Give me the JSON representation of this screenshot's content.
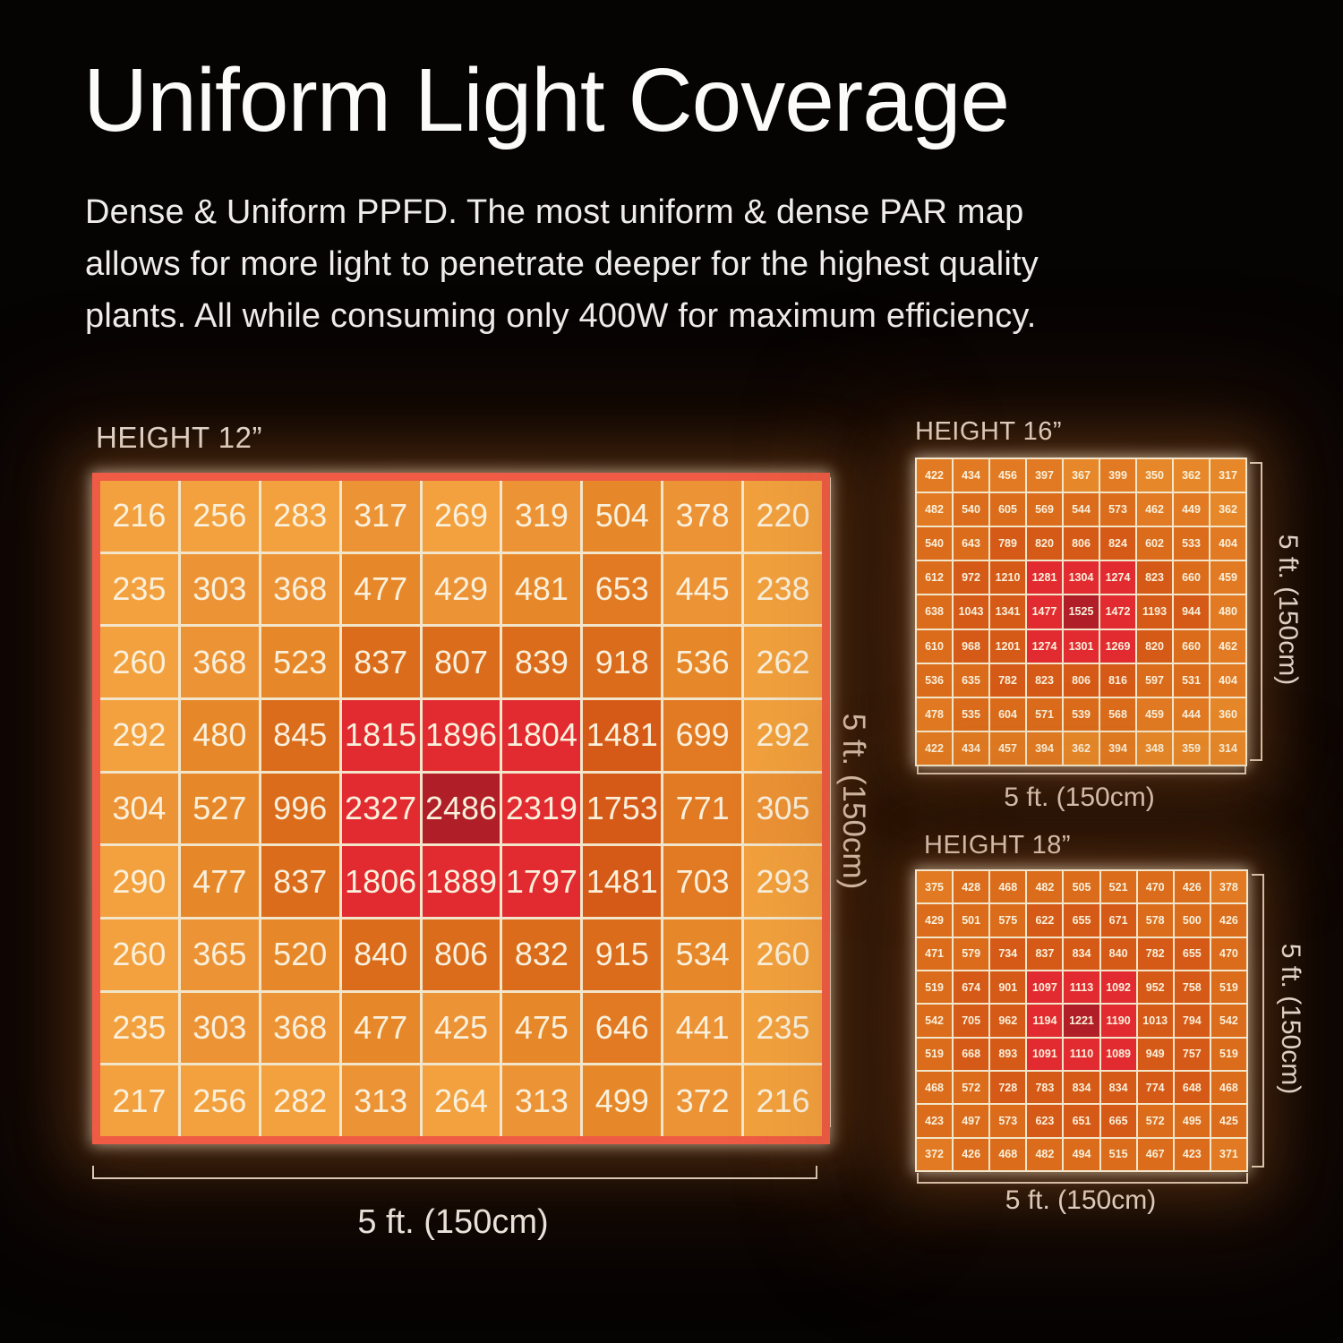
{
  "page": {
    "title": "Uniform Light Coverage",
    "description_lines": [
      "Dense & Uniform PPFD. The most uniform & dense PAR map",
      "allows for more light to penetrate deeper for the highest quality",
      "plants.  All while consuming only 400W for maximum efficiency."
    ]
  },
  "palette": {
    "background": "#060303",
    "grid_border_coral": "#EF5B44",
    "grid_line_cream": "#F2E5C9",
    "cell_text": "#FAF0DB",
    "label_white": "#F4F2EE",
    "tier_colors": {
      "light": "#F2A13E",
      "orange": "#EC9336",
      "medium": "#E68829",
      "medium_dark": "#E17A22",
      "dark": "#DA6C1B",
      "rust": "#D65A17",
      "red": "#E22B31",
      "dark_red": "#B01F27"
    }
  },
  "chart_data": [
    {
      "type": "heatmap",
      "title": "HEIGHT 12”",
      "xlabel": "5 ft. (150cm)",
      "ylabel": "5 ft. (150cm)",
      "rows": 9,
      "cols": 9,
      "values": [
        [
          216,
          256,
          283,
          317,
          269,
          319,
          504,
          378,
          220
        ],
        [
          235,
          303,
          368,
          477,
          429,
          481,
          653,
          445,
          238
        ],
        [
          260,
          368,
          523,
          837,
          807,
          839,
          918,
          536,
          262
        ],
        [
          292,
          480,
          845,
          1815,
          1896,
          1804,
          1481,
          699,
          292
        ],
        [
          304,
          527,
          996,
          2327,
          2486,
          2319,
          1753,
          771,
          305
        ],
        [
          290,
          477,
          837,
          1806,
          1889,
          1797,
          1481,
          703,
          293
        ],
        [
          260,
          365,
          520,
          840,
          806,
          832,
          915,
          534,
          260
        ],
        [
          235,
          303,
          368,
          477,
          425,
          475,
          646,
          441,
          235
        ],
        [
          217,
          256,
          282,
          313,
          264,
          313,
          499,
          372,
          216
        ]
      ]
    },
    {
      "type": "heatmap",
      "title": "HEIGHT 16”",
      "xlabel": "5 ft. (150cm)",
      "ylabel": "5 ft. (150cm)",
      "rows": 9,
      "cols": 9,
      "values": [
        [
          422,
          434,
          456,
          397,
          367,
          399,
          350,
          362,
          317
        ],
        [
          482,
          540,
          605,
          569,
          544,
          573,
          462,
          449,
          362
        ],
        [
          540,
          643,
          789,
          820,
          806,
          824,
          602,
          533,
          404
        ],
        [
          612,
          972,
          1210,
          1281,
          1304,
          1274,
          823,
          660,
          459
        ],
        [
          638,
          1043,
          1341,
          1477,
          1525,
          1472,
          1193,
          944,
          480
        ],
        [
          610,
          968,
          1201,
          1274,
          1301,
          1269,
          820,
          660,
          462
        ],
        [
          536,
          635,
          782,
          823,
          806,
          816,
          597,
          531,
          404
        ],
        [
          478,
          535,
          604,
          571,
          539,
          568,
          459,
          444,
          360
        ],
        [
          422,
          434,
          457,
          394,
          362,
          394,
          348,
          359,
          314
        ]
      ]
    },
    {
      "type": "heatmap",
      "title": "HEIGHT 18”",
      "xlabel": "5 ft. (150cm)",
      "ylabel": "5 ft. (150cm)",
      "rows": 9,
      "cols": 9,
      "values": [
        [
          375,
          428,
          468,
          482,
          505,
          521,
          470,
          426,
          378
        ],
        [
          429,
          501,
          575,
          622,
          655,
          671,
          578,
          500,
          426
        ],
        [
          471,
          579,
          734,
          837,
          834,
          840,
          782,
          655,
          470
        ],
        [
          519,
          674,
          901,
          1097,
          1113,
          1092,
          952,
          758,
          519
        ],
        [
          542,
          705,
          962,
          1194,
          1221,
          1190,
          1013,
          794,
          542
        ],
        [
          519,
          668,
          893,
          1091,
          1110,
          1089,
          949,
          757,
          519
        ],
        [
          468,
          572,
          728,
          783,
          834,
          834,
          774,
          648,
          468
        ],
        [
          423,
          497,
          573,
          623,
          651,
          665,
          572,
          495,
          425
        ],
        [
          372,
          426,
          468,
          482,
          494,
          515,
          467,
          423,
          371
        ]
      ]
    }
  ]
}
